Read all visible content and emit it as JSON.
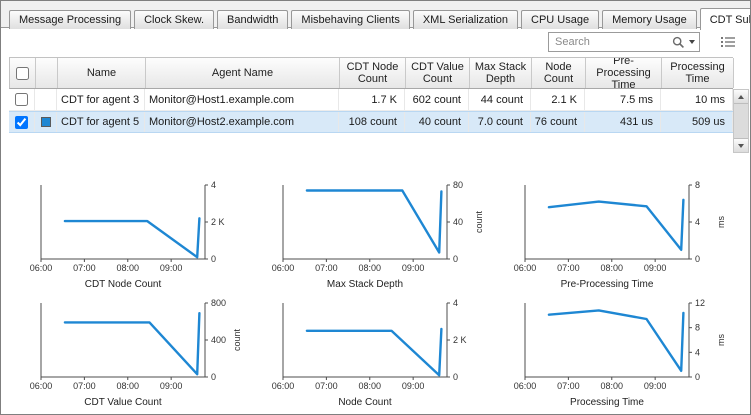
{
  "tabs": {
    "items": [
      "Message Processing",
      "Clock Skew.",
      "Bandwidth",
      "Misbehaving Clients",
      "XML Serialization",
      "CPU Usage",
      "Memory Usage",
      "CDT Submission"
    ],
    "active": "CDT Submission"
  },
  "toolbar": {
    "search_placeholder": "Search",
    "icons": [
      "search-icon",
      "search-options-chevron-icon",
      "column-chooser-icon"
    ]
  },
  "table": {
    "columns": [
      "Name",
      "Agent Name",
      "CDT Node Count",
      "CDT Value Count",
      "Max Stack Depth",
      "Node Count",
      "Pre-Processing Time",
      "Processing Time"
    ],
    "rows": [
      {
        "checked": false,
        "selected": false,
        "swatch": null,
        "name": "CDT for agent 3",
        "agent": "Monitor@Host1.example.com",
        "values": [
          "1.7 K",
          "602 count",
          "44 count",
          "2.1 K",
          "7.5 ms",
          "10 ms"
        ]
      },
      {
        "checked": true,
        "selected": true,
        "swatch": "#1e87d3",
        "name": "CDT for agent 5",
        "agent": "Monitor@Host2.example.com",
        "values": [
          "108 count",
          "40 count",
          "7.0 count",
          "76 count",
          "431 us",
          "509 us"
        ]
      }
    ]
  },
  "colors": {
    "accent": "#1e87d3",
    "selected_row": "#d8e9f8"
  },
  "chart_data": [
    {
      "type": "line",
      "title": "CDT Node Count",
      "ylabel": "",
      "xlim": [
        6,
        9.78
      ],
      "ylim": [
        0,
        4
      ],
      "x_ticks": [
        {
          "v": 6,
          "label": "06:00"
        },
        {
          "v": 7,
          "label": "07:00"
        },
        {
          "v": 8,
          "label": "08:00"
        },
        {
          "v": 9,
          "label": "09:00"
        }
      ],
      "y_ticks": [
        {
          "v": 0,
          "label": "0"
        },
        {
          "v": 2,
          "label": "2 K"
        },
        {
          "v": 4,
          "label": "4"
        }
      ],
      "series": [
        {
          "name": "CDT for agent 5",
          "points": [
            [
              6.55,
              2.05
            ],
            [
              8.45,
              2.05
            ],
            [
              9.6,
              0.1
            ],
            [
              9.65,
              2.2
            ]
          ]
        }
      ]
    },
    {
      "type": "line",
      "title": "Max Stack Depth",
      "ylabel": "count",
      "xlim": [
        6,
        9.78
      ],
      "ylim": [
        0,
        80
      ],
      "x_ticks": [
        {
          "v": 6,
          "label": "06:00"
        },
        {
          "v": 7,
          "label": "07:00"
        },
        {
          "v": 8,
          "label": "08:00"
        },
        {
          "v": 9,
          "label": "09:00"
        }
      ],
      "y_ticks": [
        {
          "v": 0,
          "label": "0"
        },
        {
          "v": 40,
          "label": "40"
        },
        {
          "v": 80,
          "label": "80"
        }
      ],
      "series": [
        {
          "name": "CDT for agent 5",
          "points": [
            [
              6.55,
              74
            ],
            [
              8.75,
              74
            ],
            [
              9.6,
              7
            ],
            [
              9.65,
              73
            ]
          ]
        }
      ]
    },
    {
      "type": "line",
      "title": "Pre-Processing Time",
      "ylabel": "ms",
      "xlim": [
        6,
        9.78
      ],
      "ylim": [
        0,
        8
      ],
      "x_ticks": [
        {
          "v": 6,
          "label": "06:00"
        },
        {
          "v": 7,
          "label": "07:00"
        },
        {
          "v": 8,
          "label": "08:00"
        },
        {
          "v": 9,
          "label": "09:00"
        }
      ],
      "y_ticks": [
        {
          "v": 0,
          "label": "0"
        },
        {
          "v": 4,
          "label": "4"
        },
        {
          "v": 8,
          "label": "8"
        }
      ],
      "series": [
        {
          "name": "CDT for agent 5",
          "points": [
            [
              6.55,
              5.6
            ],
            [
              7.7,
              6.2
            ],
            [
              8.8,
              5.7
            ],
            [
              9.6,
              1.0
            ],
            [
              9.65,
              6.4
            ]
          ]
        }
      ]
    },
    {
      "type": "line",
      "title": "CDT Value Count",
      "ylabel": "count",
      "xlim": [
        6,
        9.78
      ],
      "ylim": [
        0,
        800
      ],
      "x_ticks": [
        {
          "v": 6,
          "label": "06:00"
        },
        {
          "v": 7,
          "label": "07:00"
        },
        {
          "v": 8,
          "label": "08:00"
        },
        {
          "v": 9,
          "label": "09:00"
        }
      ],
      "y_ticks": [
        {
          "v": 0,
          "label": "0"
        },
        {
          "v": 400,
          "label": "400"
        },
        {
          "v": 800,
          "label": "800"
        }
      ],
      "series": [
        {
          "name": "CDT for agent 5",
          "points": [
            [
              6.55,
              590
            ],
            [
              8.5,
              590
            ],
            [
              9.6,
              30
            ],
            [
              9.65,
              690
            ]
          ]
        }
      ]
    },
    {
      "type": "line",
      "title": "Node Count",
      "ylabel": "",
      "xlim": [
        6,
        9.78
      ],
      "ylim": [
        0,
        4
      ],
      "x_ticks": [
        {
          "v": 6,
          "label": "06:00"
        },
        {
          "v": 7,
          "label": "07:00"
        },
        {
          "v": 8,
          "label": "08:00"
        },
        {
          "v": 9,
          "label": "09:00"
        }
      ],
      "y_ticks": [
        {
          "v": 0,
          "label": "0"
        },
        {
          "v": 2,
          "label": "2 K"
        },
        {
          "v": 4,
          "label": "4"
        }
      ],
      "series": [
        {
          "name": "CDT for agent 5",
          "points": [
            [
              6.55,
              2.5
            ],
            [
              8.5,
              2.5
            ],
            [
              9.6,
              0.1
            ],
            [
              9.65,
              2.6
            ]
          ]
        }
      ]
    },
    {
      "type": "line",
      "title": "Processing Time",
      "ylabel": "ms",
      "xlim": [
        6,
        9.78
      ],
      "ylim": [
        0,
        12
      ],
      "x_ticks": [
        {
          "v": 6,
          "label": "06:00"
        },
        {
          "v": 7,
          "label": "07:00"
        },
        {
          "v": 8,
          "label": "08:00"
        },
        {
          "v": 9,
          "label": "09:00"
        }
      ],
      "y_ticks": [
        {
          "v": 0,
          "label": "0"
        },
        {
          "v": 4,
          "label": "4"
        },
        {
          "v": 8,
          "label": "8"
        },
        {
          "v": 12,
          "label": "12"
        }
      ],
      "series": [
        {
          "name": "CDT for agent 5",
          "points": [
            [
              6.55,
              10.1
            ],
            [
              7.7,
              10.8
            ],
            [
              8.8,
              9.4
            ],
            [
              9.6,
              1.0
            ],
            [
              9.65,
              10.4
            ]
          ]
        }
      ]
    }
  ]
}
